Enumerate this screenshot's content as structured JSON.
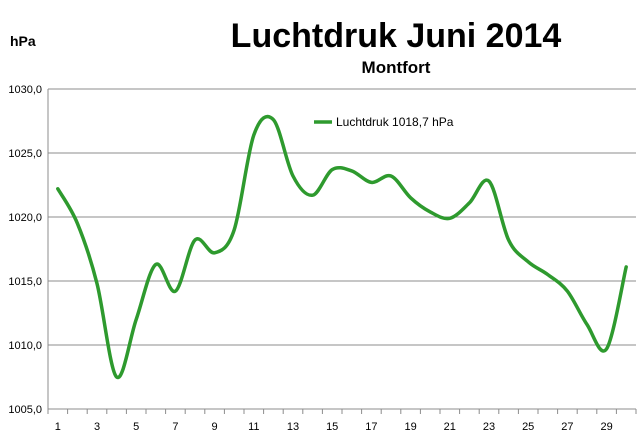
{
  "chart_data": {
    "type": "line",
    "title": "Luchtdruk Juni 2014",
    "subtitle": "Montfort",
    "ylabel": "hPa",
    "xlabel": "",
    "ylim": [
      1005.0,
      1030.0
    ],
    "y_ticks": [
      "1005,0",
      "1010,0",
      "1015,0",
      "1020,0",
      "1025,0",
      "1030,0"
    ],
    "x_ticks": [
      "1",
      "3",
      "5",
      "7",
      "9",
      "11",
      "13",
      "15",
      "17",
      "19",
      "21",
      "23",
      "25",
      "27",
      "29"
    ],
    "grid": true,
    "legend_position": "top-center",
    "x": [
      1,
      2,
      3,
      4,
      5,
      6,
      7,
      8,
      9,
      10,
      11,
      12,
      13,
      14,
      15,
      16,
      17,
      18,
      19,
      20,
      21,
      22,
      23,
      24,
      25,
      26,
      27,
      28,
      29,
      30
    ],
    "series": [
      {
        "name": "Luchtdruk 1018,7 hPa",
        "color": "#2e9a2e",
        "values": [
          1022.2,
          1019.5,
          1014.8,
          1007.5,
          1012.0,
          1016.3,
          1014.2,
          1018.2,
          1017.2,
          1019.0,
          1026.4,
          1027.6,
          1023.2,
          1021.7,
          1023.7,
          1023.6,
          1022.7,
          1023.2,
          1021.5,
          1020.4,
          1019.9,
          1021.1,
          1022.8,
          1018.2,
          1016.5,
          1015.5,
          1014.2,
          1011.6,
          1009.7,
          1016.1
        ]
      }
    ]
  }
}
